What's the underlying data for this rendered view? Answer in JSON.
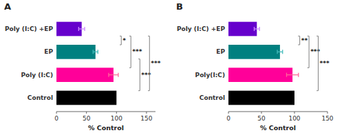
{
  "chart_data": [
    {
      "type": "bar",
      "orientation": "horizontal",
      "title": "A",
      "categories": [
        "Poly (I:C) +EP",
        "EP",
        "Poly (I:C)",
        "Control"
      ],
      "values": [
        42,
        65,
        95,
        100
      ],
      "errors": [
        5,
        4,
        8,
        0
      ],
      "colors": [
        "#6600cc",
        "#008080",
        "#ff0099",
        "#000000"
      ],
      "error_colors": [
        "#cc88ff",
        "#44bbbb",
        "#ff6699",
        "#000000"
      ],
      "xlim": [
        0,
        165
      ],
      "xticks": [
        0,
        50,
        100,
        150
      ],
      "xlabel": "% Control",
      "grid": false,
      "annotations": [
        {
          "text": "*",
          "bars": [
            0,
            1
          ],
          "x": 108
        },
        {
          "text": "***",
          "bars": [
            0,
            2
          ],
          "x": 124
        },
        {
          "text": "***",
          "bars": [
            1,
            3
          ],
          "x": 139
        },
        {
          "text": "***",
          "bars": [
            0,
            3
          ],
          "x": 155
        }
      ]
    },
    {
      "type": "bar",
      "orientation": "horizontal",
      "title": "B",
      "categories": [
        "Poly (I:C) +EP",
        "EP",
        "Poly(I:C)",
        "Control"
      ],
      "values": [
        43,
        78,
        97,
        100
      ],
      "errors": [
        4,
        4,
        9,
        0
      ],
      "colors": [
        "#6600cc",
        "#008080",
        "#ff0099",
        "#000000"
      ],
      "error_colors": [
        "#cc88ff",
        "#44bbbb",
        "#ff6699",
        "#000000"
      ],
      "xlim": [
        0,
        150
      ],
      "xticks": [
        0,
        50,
        100,
        150
      ],
      "xlabel": "% Control",
      "grid": false,
      "annotations": [
        {
          "text": "**",
          "bars": [
            0,
            1
          ],
          "x": 108
        },
        {
          "text": "***",
          "bars": [
            0,
            2
          ],
          "x": 122
        },
        {
          "text": "***",
          "bars": [
            0,
            3
          ],
          "x": 136
        }
      ]
    }
  ]
}
